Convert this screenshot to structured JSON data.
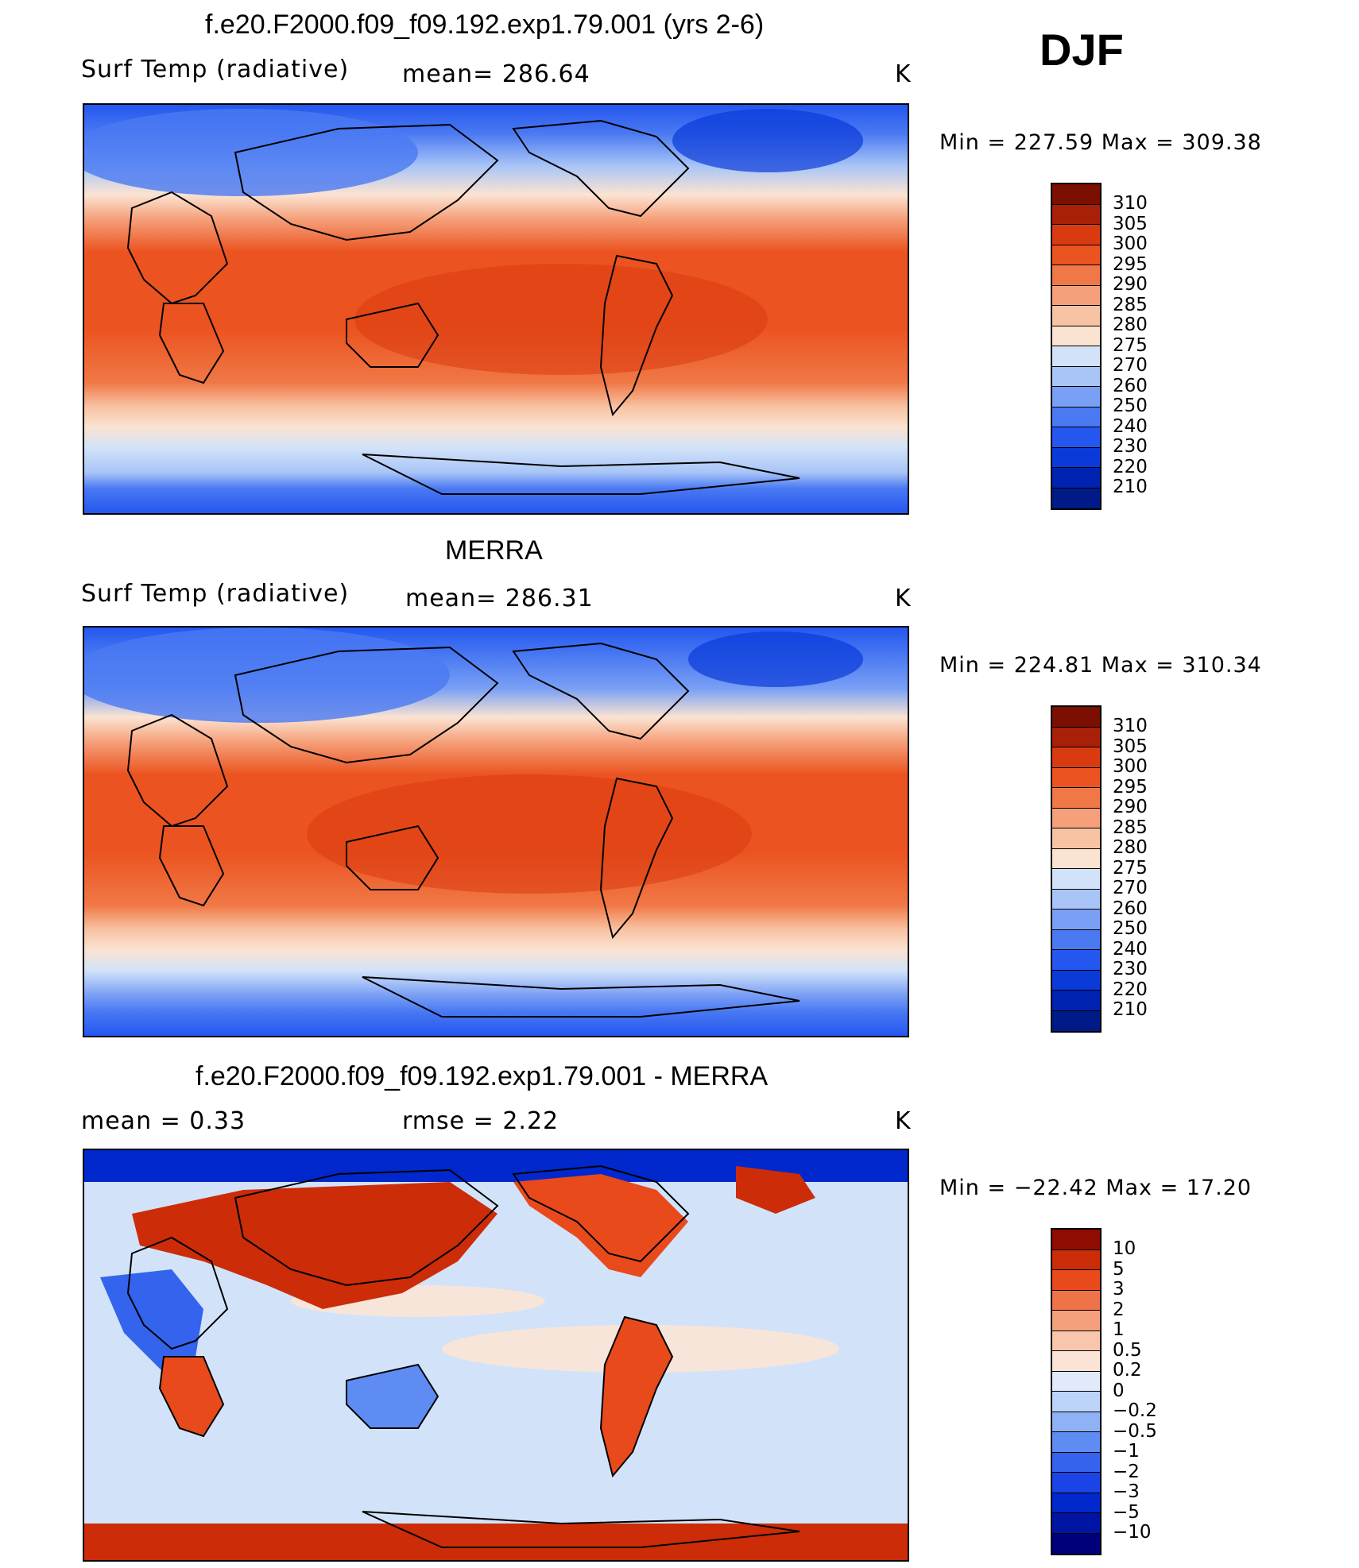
{
  "season": "DJF",
  "colors": {
    "abs_scale": [
      "#001a87",
      "#0022b0",
      "#0a3bd9",
      "#2357ef",
      "#4a79f2",
      "#7aa0f5",
      "#a9c5f7",
      "#d2e3f9",
      "#fbe3d2",
      "#f8c3a3",
      "#f5a07a",
      "#f07846",
      "#eb5420",
      "#da3a10",
      "#a82008",
      "#7a0f02"
    ],
    "diff_scale": [
      "#00007a",
      "#0015a3",
      "#0028cc",
      "#1a44e6",
      "#3463ee",
      "#5f8cf2",
      "#8fb2f6",
      "#bcd4f9",
      "#e0eafb",
      "#fbe4d6",
      "#f8c6ad",
      "#f5a07c",
      "#ef7348",
      "#e84a1c",
      "#cc2c08",
      "#8e0c00"
    ]
  },
  "panels": [
    {
      "id": "model",
      "title": "f.e20.F2000.f09_f09.192.exp1.79.001 (yrs 2-6)",
      "left_label": "Surf Temp (radiative)",
      "center_label": "mean=  286.64",
      "unit": "K",
      "minmax": "Min  =  227.59  Max  =  309.38",
      "colorbar_labels": [
        "310",
        "305",
        "300",
        "295",
        "290",
        "285",
        "280",
        "275",
        "270",
        "260",
        "250",
        "240",
        "230",
        "220",
        "210"
      ],
      "scale": "abs"
    },
    {
      "id": "obs",
      "title": "MERRA",
      "left_label": "Surf Temp (radiative)",
      "center_label": "mean=  286.31",
      "unit": "K",
      "minmax": "Min  =  224.81  Max  =  310.34",
      "colorbar_labels": [
        "310",
        "305",
        "300",
        "295",
        "290",
        "285",
        "280",
        "275",
        "270",
        "260",
        "250",
        "240",
        "230",
        "220",
        "210"
      ],
      "scale": "abs"
    },
    {
      "id": "diff",
      "title": "f.e20.F2000.f09_f09.192.exp1.79.001 - MERRA",
      "left_label": "mean  =     0.33",
      "center_label": "rmse  =     2.22",
      "unit": "K",
      "minmax": "Min  =  −22.42  Max  =    17.20",
      "colorbar_labels": [
        "10",
        "5",
        "3",
        "2",
        "1",
        "0.5",
        "0.2",
        "0",
        "−0.2",
        "−0.5",
        "−1",
        "−2",
        "−3",
        "−5",
        "−10"
      ],
      "scale": "diff"
    }
  ]
}
